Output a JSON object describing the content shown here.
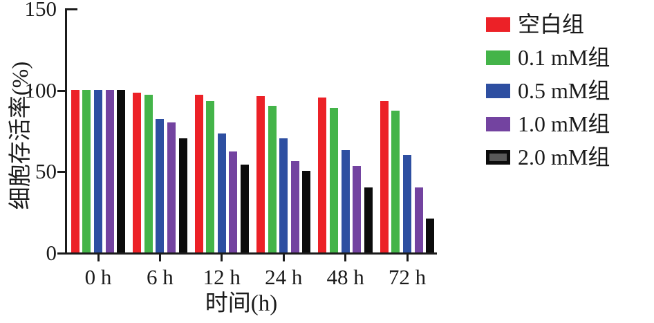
{
  "chart_data": {
    "type": "bar",
    "title": "",
    "categories": [
      "0 h",
      "6 h",
      "12 h",
      "24 h",
      "48 h",
      "72 h"
    ],
    "series": [
      {
        "name": "空白组",
        "color": "#EC2127",
        "values": [
          100,
          98,
          97,
          96,
          95,
          93
        ]
      },
      {
        "name": "0.1 mM组",
        "color": "#44B449",
        "values": [
          100,
          97,
          93,
          90,
          89,
          87
        ]
      },
      {
        "name": "0.5 mM组",
        "color": "#2E4FA1",
        "values": [
          100,
          82,
          73,
          70,
          63,
          60
        ]
      },
      {
        "name": "1.0 mM组",
        "color": "#7343A0",
        "values": [
          100,
          80,
          62,
          56,
          53,
          40
        ]
      },
      {
        "name": "2.0 mM组",
        "color": "#0C0C0C",
        "values": [
          100,
          70,
          54,
          50,
          40,
          21
        ],
        "swatch_inner": "#595959"
      }
    ],
    "xlabel": "时间(h)",
    "ylabel": "细胞存活率(%)",
    "ylim": [
      0,
      150
    ],
    "yticks": [
      0,
      50,
      100,
      150
    ],
    "grid": false,
    "legend_position": "right",
    "axis_color": "#1b1b1b"
  }
}
